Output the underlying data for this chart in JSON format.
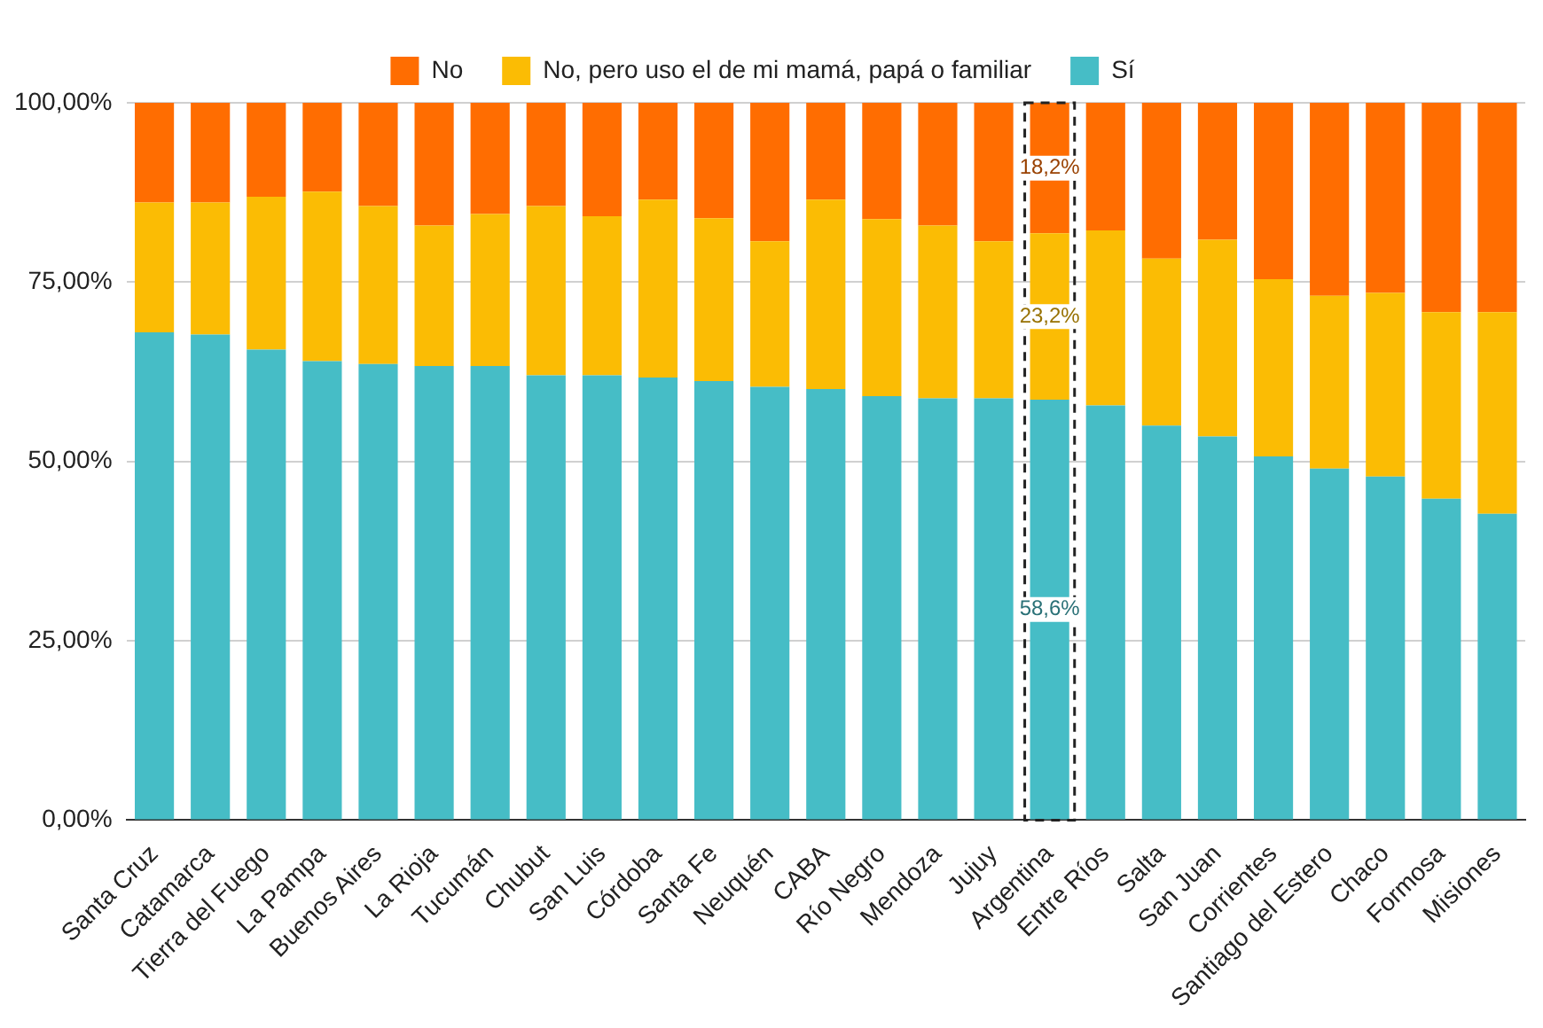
{
  "chart_data": {
    "type": "bar",
    "stacked": true,
    "legend": "top",
    "grid": "y",
    "categories": [
      "Santa Cruz",
      "Catamarca",
      "Tierra del Fuego",
      "La Pampa",
      "Buenos Aires",
      "La Rioja",
      "Tucumán",
      "Chubut",
      "San Luis",
      "Córdoba",
      "Santa Fe",
      "Neuquén",
      "CABA",
      "Río Negro",
      "Mendoza",
      "Jujuy",
      "Argentina",
      "Entre Ríos",
      "Salta",
      "San Juan",
      "Corrientes",
      "Santiago del Estero",
      "Chaco",
      "Formosa",
      "Misiones"
    ],
    "ylim": [
      0,
      100
    ],
    "yticks": [
      {
        "value": 0,
        "label": "0,00%"
      },
      {
        "value": 25,
        "label": "25,00%"
      },
      {
        "value": 50,
        "label": "50,00%"
      },
      {
        "value": 75,
        "label": "75,00%"
      },
      {
        "value": 100,
        "label": "100,00%"
      }
    ],
    "series": [
      {
        "name": "Sí",
        "color": "#46bdc6",
        "values": [
          68.0,
          67.7,
          65.6,
          64.0,
          63.6,
          63.3,
          63.3,
          62.0,
          62.0,
          61.7,
          61.2,
          60.4,
          60.1,
          59.1,
          58.8,
          58.8,
          58.6,
          57.8,
          55.0,
          53.5,
          50.7,
          49.0,
          47.9,
          44.8,
          42.7
        ],
        "value_labels": [
          null,
          null,
          null,
          null,
          null,
          null,
          null,
          null,
          null,
          null,
          null,
          null,
          null,
          null,
          null,
          null,
          "58,6%",
          null,
          null,
          null,
          null,
          null,
          null,
          null,
          null
        ]
      },
      {
        "name": "No, pero uso el de mi mamá, papá o familiar",
        "color": "#fbbc04",
        "values": [
          18.1,
          18.4,
          21.3,
          23.6,
          22.0,
          19.6,
          21.2,
          23.6,
          22.2,
          24.8,
          22.7,
          20.3,
          26.4,
          24.7,
          24.1,
          21.9,
          23.2,
          24.4,
          23.3,
          27.4,
          24.7,
          24.1,
          25.6,
          26.0,
          28.1
        ],
        "value_labels": [
          null,
          null,
          null,
          null,
          null,
          null,
          null,
          null,
          null,
          null,
          null,
          null,
          null,
          null,
          null,
          null,
          "23,2%",
          null,
          null,
          null,
          null,
          null,
          null,
          null,
          null
        ]
      },
      {
        "name": "No",
        "color": "#ff6d01",
        "values": [
          13.9,
          13.9,
          13.1,
          12.4,
          14.4,
          17.1,
          15.5,
          14.4,
          15.8,
          13.5,
          16.1,
          19.3,
          13.5,
          16.2,
          17.1,
          19.3,
          18.2,
          17.8,
          21.7,
          19.1,
          24.6,
          26.9,
          26.5,
          29.2,
          29.2
        ],
        "value_labels": [
          null,
          null,
          null,
          null,
          null,
          null,
          null,
          null,
          null,
          null,
          null,
          null,
          null,
          null,
          null,
          null,
          "18,2%",
          null,
          null,
          null,
          null,
          null,
          null,
          null,
          null
        ]
      }
    ]
  }
}
